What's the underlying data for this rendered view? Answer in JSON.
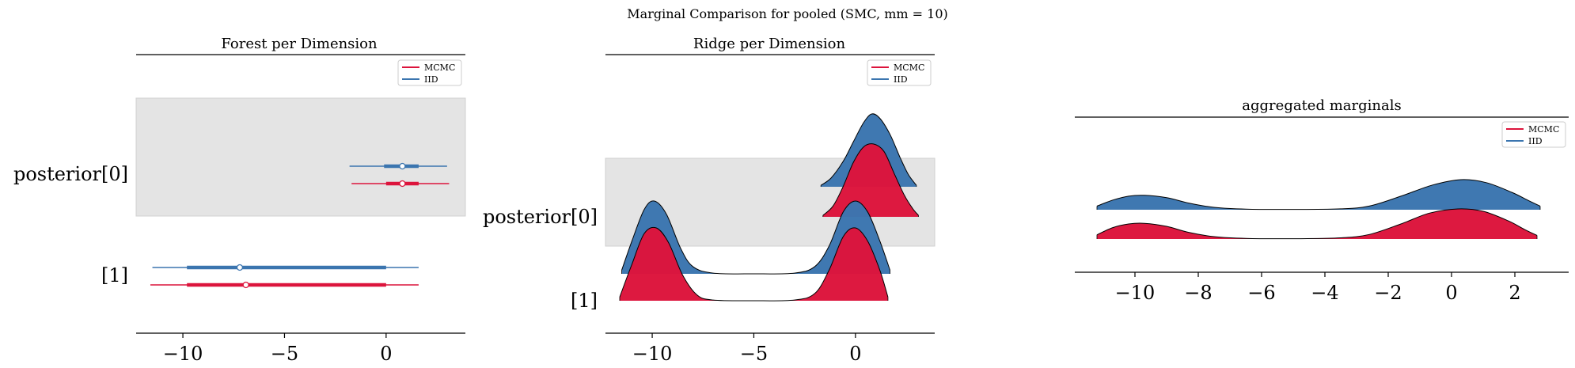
{
  "figure": {
    "suptitle": "Marginal Comparison for pooled (SMC, mm = 10)"
  },
  "colors": {
    "mcmc": "#dc143c",
    "iid": "#3b75af",
    "band": "#e4e4e4",
    "outline": "#000000"
  },
  "chart_data": [
    {
      "type": "forest",
      "title": "Forest per Dimension",
      "xlim": [
        -12.3,
        3.9
      ],
      "xticks": [
        -10,
        -5,
        0
      ],
      "xtick_labels": [
        "−10",
        "−5",
        "0"
      ],
      "ytick_labels": [
        "posterior[0]",
        "[1]"
      ],
      "legend": {
        "placement": "top-right",
        "entries": [
          {
            "label": "MCMC",
            "color": "#dc143c"
          },
          {
            "label": "IID",
            "color": "#3b75af"
          }
        ]
      },
      "shaded_rows": [
        0
      ],
      "series": [
        {
          "name": "IID",
          "color": "#3b75af",
          "rows": [
            {
              "row": 0,
              "hdi": [
                -1.8,
                3.0
              ],
              "iqr": [
                -0.1,
                1.6
              ],
              "median": 0.8
            },
            {
              "row": 1,
              "hdi": [
                -11.5,
                1.6
              ],
              "iqr": [
                -9.8,
                0.0
              ],
              "median": -7.2
            }
          ]
        },
        {
          "name": "MCMC",
          "color": "#dc143c",
          "rows": [
            {
              "row": 0,
              "hdi": [
                -1.7,
                3.1
              ],
              "iqr": [
                0.0,
                1.6
              ],
              "median": 0.8
            },
            {
              "row": 1,
              "hdi": [
                -11.6,
                1.6
              ],
              "iqr": [
                -9.8,
                0.0
              ],
              "median": -6.9
            }
          ]
        }
      ]
    },
    {
      "type": "ridge",
      "title": "Ridge per Dimension",
      "xlim": [
        -12.3,
        3.9
      ],
      "xticks": [
        -10,
        -5,
        0
      ],
      "xtick_labels": [
        "−10",
        "−5",
        "0"
      ],
      "ytick_labels": [
        "posterior[0]",
        "[1]"
      ],
      "legend": {
        "placement": "top-right",
        "entries": [
          {
            "label": "MCMC",
            "color": "#dc143c"
          },
          {
            "label": "IID",
            "color": "#3b75af"
          }
        ]
      },
      "shaded_rows": [
        0
      ],
      "series": [
        {
          "name": "IID",
          "color": "#3b75af",
          "rows": [
            {
              "row": 0,
              "range": [
                -1.7,
                3.0
              ],
              "density": [
                [
                  -1.7,
                  0.02
                ],
                [
                  -1.2,
                  0.12
                ],
                [
                  -0.6,
                  0.35
                ],
                [
                  -0.1,
                  0.62
                ],
                [
                  0.4,
                  0.88
                ],
                [
                  0.8,
                  1.0
                ],
                [
                  1.2,
                  0.94
                ],
                [
                  1.7,
                  0.72
                ],
                [
                  2.2,
                  0.4
                ],
                [
                  2.6,
                  0.17
                ],
                [
                  3.0,
                  0.02
                ]
              ]
            },
            {
              "row": 1,
              "range": [
                -11.5,
                1.7
              ],
              "density": [
                [
                  -11.5,
                  0.05
                ],
                [
                  -11.0,
                  0.45
                ],
                [
                  -10.4,
                  0.88
                ],
                [
                  -9.9,
                  1.0
                ],
                [
                  -9.3,
                  0.82
                ],
                [
                  -8.6,
                  0.35
                ],
                [
                  -8.0,
                  0.1
                ],
                [
                  -7.0,
                  0.01
                ],
                [
                  -5.0,
                  0.0
                ],
                [
                  -3.0,
                  0.01
                ],
                [
                  -2.0,
                  0.1
                ],
                [
                  -1.3,
                  0.38
                ],
                [
                  -0.6,
                  0.85
                ],
                [
                  0.0,
                  1.0
                ],
                [
                  0.6,
                  0.85
                ],
                [
                  1.2,
                  0.45
                ],
                [
                  1.7,
                  0.05
                ]
              ]
            }
          ]
        },
        {
          "name": "MCMC",
          "color": "#dc143c",
          "rows": [
            {
              "row": 0,
              "range": [
                -1.6,
                3.1
              ],
              "density": [
                [
                  -1.6,
                  0.02
                ],
                [
                  -1.1,
                  0.15
                ],
                [
                  -0.6,
                  0.42
                ],
                [
                  -0.1,
                  0.75
                ],
                [
                  0.4,
                  0.96
                ],
                [
                  0.9,
                  1.0
                ],
                [
                  1.4,
                  0.9
                ],
                [
                  1.9,
                  0.6
                ],
                [
                  2.4,
                  0.3
                ],
                [
                  2.8,
                  0.12
                ],
                [
                  3.1,
                  0.02
                ]
              ]
            },
            {
              "row": 1,
              "range": [
                -11.6,
                1.6
              ],
              "density": [
                [
                  -11.6,
                  0.05
                ],
                [
                  -11.0,
                  0.5
                ],
                [
                  -10.4,
                  0.92
                ],
                [
                  -9.8,
                  1.0
                ],
                [
                  -9.2,
                  0.8
                ],
                [
                  -8.5,
                  0.35
                ],
                [
                  -7.8,
                  0.08
                ],
                [
                  -7.0,
                  0.01
                ],
                [
                  -5.0,
                  0.0
                ],
                [
                  -3.0,
                  0.01
                ],
                [
                  -2.0,
                  0.1
                ],
                [
                  -1.3,
                  0.42
                ],
                [
                  -0.6,
                  0.88
                ],
                [
                  0.0,
                  1.0
                ],
                [
                  0.6,
                  0.82
                ],
                [
                  1.2,
                  0.42
                ],
                [
                  1.6,
                  0.05
                ]
              ]
            }
          ]
        }
      ]
    },
    {
      "type": "ridge",
      "title": "aggregated marginals",
      "xlim": [
        -11.9,
        3.7
      ],
      "xticks": [
        -10,
        -8,
        -6,
        -4,
        -2,
        0,
        2
      ],
      "xtick_labels": [
        "−10",
        "−8",
        "−6",
        "−4",
        "−2",
        "0",
        "2"
      ],
      "ytick_labels": [],
      "legend": {
        "placement": "top-right",
        "entries": [
          {
            "label": "MCMC",
            "color": "#dc143c"
          },
          {
            "label": "IID",
            "color": "#3b75af"
          }
        ]
      },
      "series": [
        {
          "name": "IID",
          "color": "#3b75af",
          "density": [
            [
              -11.2,
              0.12
            ],
            [
              -10.7,
              0.32
            ],
            [
              -10.2,
              0.45
            ],
            [
              -9.7,
              0.48
            ],
            [
              -9.0,
              0.4
            ],
            [
              -8.3,
              0.22
            ],
            [
              -7.5,
              0.08
            ],
            [
              -6.5,
              0.02
            ],
            [
              -5.0,
              0.01
            ],
            [
              -3.5,
              0.03
            ],
            [
              -2.6,
              0.12
            ],
            [
              -1.6,
              0.45
            ],
            [
              -0.6,
              0.82
            ],
            [
              0.3,
              1.0
            ],
            [
              1.1,
              0.9
            ],
            [
              1.9,
              0.58
            ],
            [
              2.4,
              0.32
            ],
            [
              2.8,
              0.12
            ]
          ]
        },
        {
          "name": "MCMC",
          "color": "#dc143c",
          "density": [
            [
              -11.2,
              0.14
            ],
            [
              -10.7,
              0.38
            ],
            [
              -10.2,
              0.5
            ],
            [
              -9.7,
              0.52
            ],
            [
              -9.0,
              0.42
            ],
            [
              -8.3,
              0.22
            ],
            [
              -7.5,
              0.08
            ],
            [
              -6.5,
              0.02
            ],
            [
              -5.0,
              0.01
            ],
            [
              -3.5,
              0.04
            ],
            [
              -2.6,
              0.15
            ],
            [
              -1.6,
              0.5
            ],
            [
              -0.7,
              0.86
            ],
            [
              0.2,
              1.0
            ],
            [
              1.0,
              0.92
            ],
            [
              1.8,
              0.6
            ],
            [
              2.3,
              0.32
            ],
            [
              2.7,
              0.12
            ]
          ]
        }
      ]
    }
  ]
}
